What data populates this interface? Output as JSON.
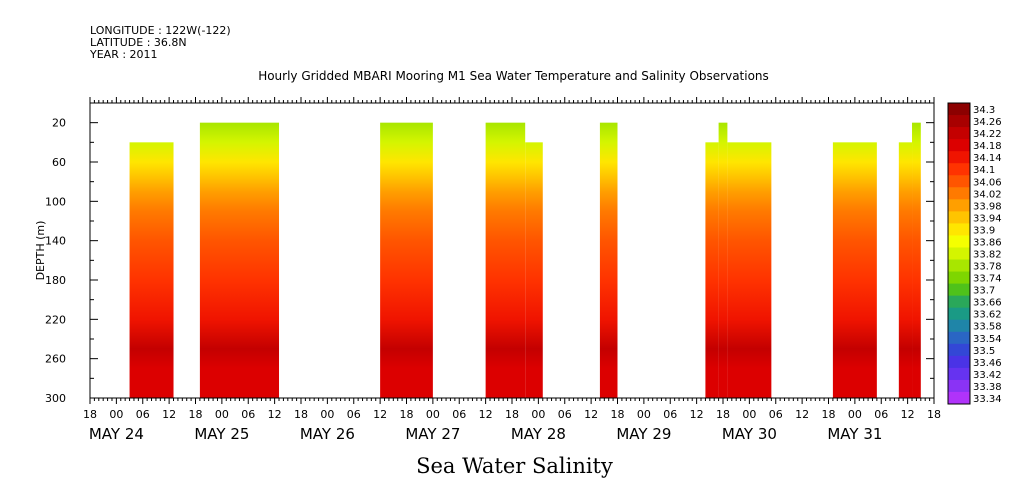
{
  "header": {
    "longitude": "LONGITUDE : 122W(-122)",
    "latitude": "LATITUDE : 36.8N",
    "year": "YEAR : 2011"
  },
  "title": "Hourly Gridded MBARI Mooring M1 Sea Water Temperature and Salinity Observations",
  "bottom_title": "Sea Water Salinity",
  "chart_data": {
    "type": "heatmap",
    "title": "Hourly Gridded MBARI Mooring M1 Sea Water Temperature and Salinity Observations",
    "xlabel": "",
    "ylabel": "DEPTH (m)",
    "x_axis": {
      "unit": "hours since May 24 00:00",
      "range": [
        -6,
        186
      ],
      "tick_step": 6,
      "hour_labels": [
        "18",
        "00",
        "06",
        "12",
        "18",
        "00",
        "06",
        "12",
        "18",
        "00",
        "06",
        "12",
        "18",
        "00",
        "06",
        "12",
        "18",
        "00",
        "06",
        "12",
        "18",
        "00",
        "06",
        "12",
        "18",
        "00",
        "06",
        "12",
        "18",
        "00",
        "06",
        "12",
        "18"
      ],
      "day_labels": [
        {
          "label": "MAY 24",
          "hour": 0
        },
        {
          "label": "MAY 25",
          "hour": 24
        },
        {
          "label": "MAY 26",
          "hour": 48
        },
        {
          "label": "MAY 27",
          "hour": 72
        },
        {
          "label": "MAY 28",
          "hour": 96
        },
        {
          "label": "MAY 29",
          "hour": 120
        },
        {
          "label": "MAY 30",
          "hour": 144
        },
        {
          "label": "MAY 31",
          "hour": 168
        }
      ]
    },
    "y_axis": {
      "range": [
        0,
        300
      ],
      "inverted": true,
      "ticks": [
        20,
        60,
        100,
        140,
        180,
        220,
        260,
        300
      ]
    },
    "data_blocks": [
      {
        "start_hour": 3,
        "end_hour": 13,
        "top_depth": 40
      },
      {
        "start_hour": 19,
        "end_hour": 37,
        "top_depth": 20
      },
      {
        "start_hour": 60,
        "end_hour": 72,
        "top_depth": 20
      },
      {
        "start_hour": 84,
        "end_hour": 93,
        "top_depth": 20
      },
      {
        "start_hour": 93,
        "end_hour": 97,
        "top_depth": 40
      },
      {
        "start_hour": 110,
        "end_hour": 114,
        "top_depth": 20
      },
      {
        "start_hour": 134,
        "end_hour": 137,
        "top_depth": 40
      },
      {
        "start_hour": 137,
        "end_hour": 139,
        "top_depth": 20
      },
      {
        "start_hour": 139,
        "end_hour": 149,
        "top_depth": 40
      },
      {
        "start_hour": 163,
        "end_hour": 173,
        "top_depth": 40
      },
      {
        "start_hour": 178,
        "end_hour": 181,
        "top_depth": 40
      },
      {
        "start_hour": 181,
        "end_hour": 183,
        "top_depth": 20
      }
    ],
    "salinity_profile": [
      {
        "depth": 20,
        "salinity": 33.8
      },
      {
        "depth": 40,
        "salinity": 33.83
      },
      {
        "depth": 60,
        "salinity": 33.88
      },
      {
        "depth": 75,
        "salinity": 33.93
      },
      {
        "depth": 90,
        "salinity": 33.97
      },
      {
        "depth": 110,
        "salinity": 34.02
      },
      {
        "depth": 140,
        "salinity": 34.08
      },
      {
        "depth": 180,
        "salinity": 34.11
      },
      {
        "depth": 220,
        "salinity": 34.16
      },
      {
        "depth": 250,
        "salinity": 34.21
      },
      {
        "depth": 270,
        "salinity": 34.19
      },
      {
        "depth": 300,
        "salinity": 34.17
      }
    ],
    "colorbar": {
      "labels": [
        "34.3",
        "34.26",
        "34.22",
        "34.18",
        "34.14",
        "34.1",
        "34.06",
        "34.02",
        "33.98",
        "33.94",
        "33.9",
        "33.86",
        "33.82",
        "33.78",
        "33.74",
        "33.7",
        "33.66",
        "33.62",
        "33.58",
        "33.54",
        "33.5",
        "33.46",
        "33.42",
        "33.38",
        "33.34"
      ],
      "colors": [
        "#8c0000",
        "#a80000",
        "#c40000",
        "#dc0000",
        "#f01400",
        "#ff3300",
        "#ff5500",
        "#ff7a00",
        "#ff9f00",
        "#ffc400",
        "#ffe600",
        "#f5ff00",
        "#d4f500",
        "#a8e600",
        "#7ed600",
        "#4fc21a",
        "#2aa85a",
        "#1a9a85",
        "#1f85a8",
        "#2a66c4",
        "#3347d6",
        "#4a33e6",
        "#6633f0",
        "#8a33f5",
        "#b033fa"
      ]
    }
  }
}
